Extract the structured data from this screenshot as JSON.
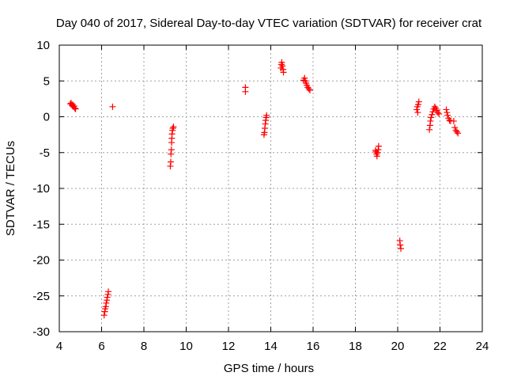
{
  "chart_data": {
    "type": "scatter",
    "title": "Day 040 of 2017, Sidereal Day-to-day VTEC variation (SDTVAR) for receiver crat",
    "xlabel": "GPS time / hours",
    "ylabel": "SDTVAR / TECUs",
    "xlim": [
      4,
      24
    ],
    "ylim": [
      -30,
      10
    ],
    "xticks": [
      "4",
      "6",
      "8",
      "10",
      "12",
      "14",
      "16",
      "18",
      "20",
      "22",
      "24"
    ],
    "yticks": [
      "10",
      "5",
      "0",
      "-5",
      "-10",
      "-15",
      "-20",
      "-25",
      "-30"
    ],
    "grid": true,
    "marker": "+",
    "color": "#ff0000",
    "series": [
      {
        "name": "SDTVAR",
        "points": [
          [
            4.52,
            1.8
          ],
          [
            4.56,
            1.9
          ],
          [
            4.6,
            1.6
          ],
          [
            4.63,
            1.7
          ],
          [
            4.67,
            1.4
          ],
          [
            4.7,
            1.5
          ],
          [
            4.73,
            1.2
          ],
          [
            4.77,
            1.1
          ],
          [
            6.52,
            1.4
          ],
          [
            6.12,
            -27.7
          ],
          [
            6.15,
            -27.2
          ],
          [
            6.17,
            -26.8
          ],
          [
            6.2,
            -26.5
          ],
          [
            6.22,
            -26.0
          ],
          [
            6.25,
            -25.6
          ],
          [
            6.27,
            -25.2
          ],
          [
            6.3,
            -24.8
          ],
          [
            6.32,
            -24.4
          ],
          [
            9.25,
            -6.9
          ],
          [
            9.27,
            -6.3
          ],
          [
            9.28,
            -5.2
          ],
          [
            9.3,
            -4.6
          ],
          [
            9.31,
            -3.6
          ],
          [
            9.32,
            -3.0
          ],
          [
            9.33,
            -2.4
          ],
          [
            9.35,
            -1.9
          ],
          [
            9.37,
            -1.6
          ],
          [
            9.4,
            -1.4
          ],
          [
            12.8,
            4.1
          ],
          [
            12.8,
            3.5
          ],
          [
            13.68,
            -2.5
          ],
          [
            13.7,
            -2.2
          ],
          [
            13.72,
            -1.6
          ],
          [
            13.74,
            -1.0
          ],
          [
            13.76,
            -0.5
          ],
          [
            13.78,
            -0.1
          ],
          [
            13.8,
            0.2
          ],
          [
            14.48,
            6.8
          ],
          [
            14.5,
            7.3
          ],
          [
            14.52,
            7.6
          ],
          [
            14.55,
            7.1
          ],
          [
            14.58,
            6.6
          ],
          [
            14.6,
            6.2
          ],
          [
            15.55,
            5.1
          ],
          [
            15.6,
            5.4
          ],
          [
            15.63,
            5.0
          ],
          [
            15.67,
            4.7
          ],
          [
            15.7,
            4.4
          ],
          [
            15.75,
            4.1
          ],
          [
            15.8,
            3.9
          ],
          [
            15.85,
            3.7
          ],
          [
            18.95,
            -4.7
          ],
          [
            18.98,
            -4.9
          ],
          [
            19.0,
            -5.2
          ],
          [
            19.02,
            -5.5
          ],
          [
            19.05,
            -5.0
          ],
          [
            19.08,
            -4.6
          ],
          [
            19.1,
            -4.1
          ],
          [
            20.1,
            -17.3
          ],
          [
            20.12,
            -17.9
          ],
          [
            20.15,
            -18.4
          ],
          [
            20.9,
            1.0
          ],
          [
            20.93,
            1.4
          ],
          [
            20.95,
            0.6
          ],
          [
            20.97,
            1.7
          ],
          [
            21.0,
            2.1
          ],
          [
            21.5,
            -1.8
          ],
          [
            21.53,
            -1.2
          ],
          [
            21.55,
            -0.6
          ],
          [
            21.58,
            -0.1
          ],
          [
            21.62,
            0.3
          ],
          [
            21.66,
            0.7
          ],
          [
            21.7,
            1.1
          ],
          [
            21.75,
            1.4
          ],
          [
            21.8,
            1.2
          ],
          [
            21.85,
            0.9
          ],
          [
            21.9,
            0.6
          ],
          [
            21.95,
            0.4
          ],
          [
            22.3,
            1.0
          ],
          [
            22.33,
            0.6
          ],
          [
            22.36,
            0.2
          ],
          [
            22.4,
            -0.2
          ],
          [
            22.45,
            -0.5
          ],
          [
            22.5,
            -0.6
          ],
          [
            22.65,
            -0.6
          ],
          [
            22.7,
            -1.5
          ],
          [
            22.75,
            -1.9
          ],
          [
            22.8,
            -2.1
          ],
          [
            22.85,
            -2.3
          ]
        ]
      }
    ]
  }
}
